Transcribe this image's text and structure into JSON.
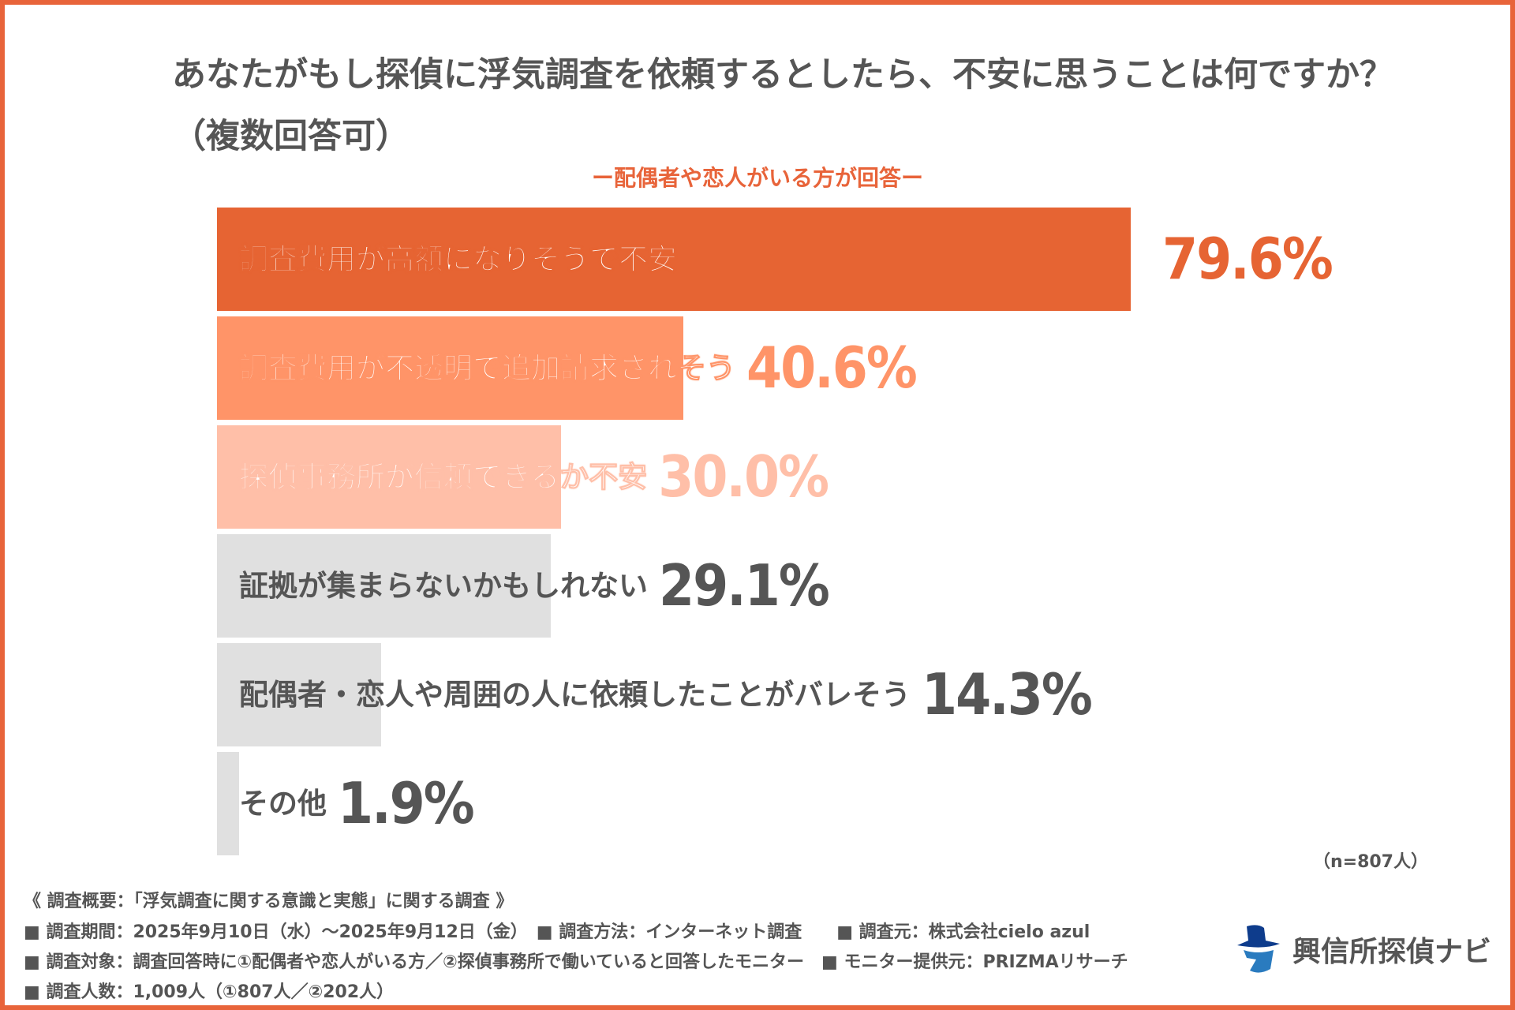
{
  "chart_data": {
    "type": "bar",
    "orientation": "horizontal",
    "title": "あなたがもし探偵に浮気調査を依頼するとしたら、不安に思うことは何ですか？（複数回答可）",
    "subtitle": "ー配偶者や恋人がいる方が回答ー",
    "categories": [
      "調査費用が高額になりそうで不安",
      "調査費用が不透明で追加請求されそう",
      "探偵事務所が信頼できるか不安",
      "証拠が集まらないかもしれない",
      "配偶者・恋人や周囲の人に依頼したことがバレそう",
      "その他"
    ],
    "values": [
      79.6,
      40.6,
      30.0,
      29.1,
      14.3,
      1.9
    ],
    "value_labels": [
      "79.6%",
      "40.6%",
      "30.0%",
      "29.1%",
      "14.3%",
      "1.9%"
    ],
    "colors": [
      "#E66433",
      "#FF9468",
      "#FFBFA8",
      "#E0E0E0",
      "#E0E0E0",
      "#E0E0E0"
    ],
    "label_colors": [
      "#E66433",
      "#FF9468",
      "#FFBFA8",
      "#555555",
      "#555555",
      "#555555"
    ],
    "xlim": [
      0,
      100
    ],
    "grid": false,
    "note": "（n=807人）"
  },
  "footer": {
    "lines": [
      "《 調査概要：「浮気調査に関する意識と実態」に関する調査 》",
      "■ 調査期間：2025年9月10日（水）～2025年9月12日（金）　■ 調査方法：インターネット調査　　■ 調査元：株式会社cielo azul",
      "■ 調査対象：調査回答時に①配偶者や恋人がいる方／②探偵事務所で働いていると回答したモニター　■ モニター提供元：PRIZMAリサーチ",
      "■ 調査人数：1,009人（①807人／②202人）"
    ]
  },
  "logo": {
    "text": "興信所探偵ナビ",
    "icon": "detective-hat-icon"
  }
}
